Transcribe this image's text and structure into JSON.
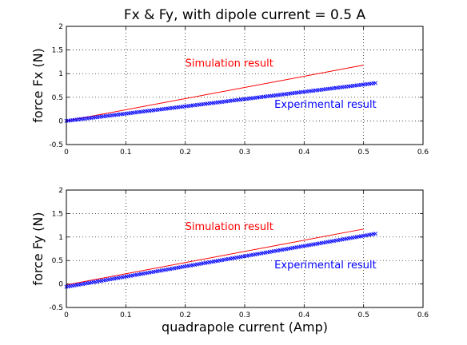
{
  "chart_data": [
    {
      "type": "line",
      "title": "Fx & Fy, with dipole current = 0.5 A",
      "xlabel": "",
      "ylabel": "force Fx (N)",
      "xlim": [
        0,
        0.6
      ],
      "ylim": [
        -0.5,
        2
      ],
      "x_ticks": [
        "0",
        "0.1",
        "0.2",
        "0.3",
        "0.4",
        "0.5",
        "0.6"
      ],
      "y_ticks": [
        "-0.5",
        "0",
        "0.5",
        "1",
        "1.5",
        "2"
      ],
      "grid": true,
      "series": [
        {
          "name": "Simulation result",
          "color": "#ff0000",
          "marker": "none",
          "x": [
            0,
            0.5
          ],
          "y": [
            0,
            1.18
          ]
        },
        {
          "name": "Experimental result",
          "color": "#0000ff",
          "marker": "x",
          "x": [
            0,
            0.52
          ],
          "y": [
            0,
            0.8
          ]
        }
      ],
      "annotations": [
        {
          "text": "Simulation result",
          "color": "#ff0000",
          "x": 0.2,
          "y": 1.15
        },
        {
          "text": "Experimental result",
          "color": "#0000ff",
          "x": 0.35,
          "y": 0.28
        }
      ]
    },
    {
      "type": "line",
      "title": "",
      "xlabel": "quadrapole current (Amp)",
      "ylabel": "force Fy (N)",
      "xlim": [
        0,
        0.6
      ],
      "ylim": [
        -0.5,
        2
      ],
      "x_ticks": [
        "0",
        "0.1",
        "0.2",
        "0.3",
        "0.4",
        "0.5",
        "0.6"
      ],
      "y_ticks": [
        "-0.5",
        "0",
        "0.5",
        "1",
        "1.5",
        "2"
      ],
      "grid": true,
      "series": [
        {
          "name": "Simulation result",
          "color": "#ff0000",
          "marker": "none",
          "x": [
            0,
            0.5
          ],
          "y": [
            -0.02,
            1.17
          ]
        },
        {
          "name": "Experimental result",
          "color": "#0000ff",
          "marker": "x",
          "x": [
            0,
            0.52
          ],
          "y": [
            -0.06,
            1.07
          ]
        }
      ],
      "annotations": [
        {
          "text": "Simulation result",
          "color": "#ff0000",
          "x": 0.2,
          "y": 1.15
        },
        {
          "text": "Experimental result",
          "color": "#0000ff",
          "x": 0.35,
          "y": 0.33
        }
      ]
    }
  ]
}
